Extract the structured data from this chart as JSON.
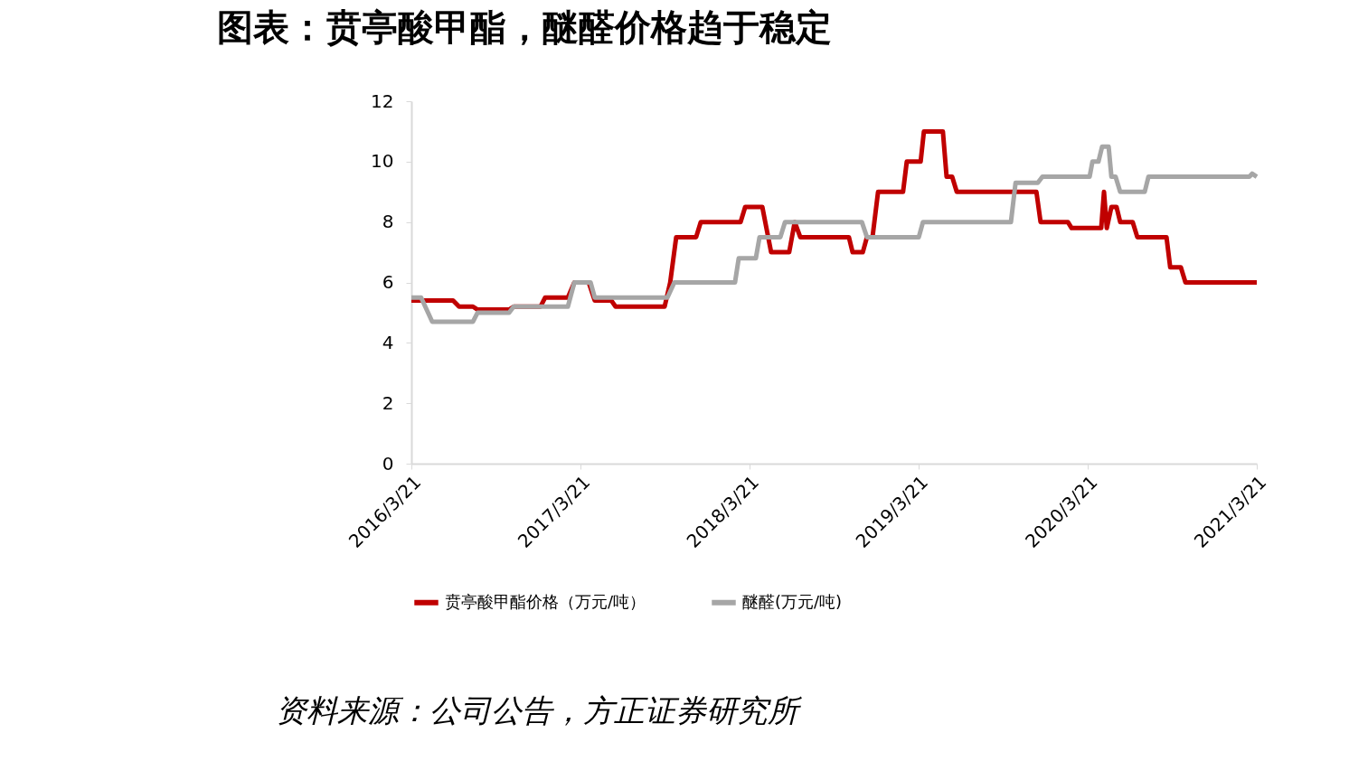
{
  "chart_data": {
    "type": "line",
    "title": "图表：贲亭酸甲酯，醚醛价格趋于稳定",
    "annotations": [
      "资料来源：公司公告，方正证券研究所"
    ],
    "series": [
      {
        "name": "贲亭酸甲酯价格（万元/吨）",
        "color": "#c00000",
        "x": [
          "2016-03-21",
          "2016-06-19",
          "2016-07-02",
          "2016-08-01",
          "2016-08-11",
          "2016-10-18",
          "2016-10-28",
          "2016-12-25",
          "2017-01-04",
          "2017-02-22",
          "2017-03-08",
          "2017-04-08",
          "2017-04-21",
          "2017-05-27",
          "2017-06-05",
          "2017-09-19",
          "2017-10-01",
          "2017-10-14",
          "2017-11-26",
          "2017-12-06",
          "2018-03-02",
          "2018-03-12",
          "2018-04-18",
          "2018-05-07",
          "2018-06-15",
          "2018-06-27",
          "2018-07-09",
          "2018-10-22",
          "2018-10-30",
          "2018-11-21",
          "2018-11-30",
          "2018-12-12",
          "2018-12-24",
          "2019-02-16",
          "2019-02-24",
          "2019-03-26",
          "2019-04-02",
          "2019-05-13",
          "2019-05-21",
          "2019-06-02",
          "2019-06-12",
          "2019-12-01",
          "2019-12-10",
          "2020-02-07",
          "2020-02-15",
          "2020-04-19",
          "2020-04-25",
          "2020-05-01",
          "2020-05-11",
          "2020-05-22",
          "2020-05-30",
          "2020-06-26",
          "2020-07-06",
          "2020-09-07",
          "2020-09-15",
          "2020-10-08",
          "2020-10-18",
          "2021-03-21"
        ],
        "values": [
          5.4,
          5.4,
          5.2,
          5.2,
          5.1,
          5.1,
          5.2,
          5.2,
          5.5,
          5.5,
          6.0,
          6.0,
          5.4,
          5.4,
          5.2,
          5.2,
          6.0,
          7.5,
          7.5,
          8.0,
          8.0,
          8.5,
          8.5,
          7.0,
          7.0,
          8.0,
          7.5,
          7.5,
          7.0,
          7.0,
          7.5,
          7.5,
          9.0,
          9.0,
          10.0,
          10.0,
          11.0,
          11.0,
          9.5,
          9.5,
          9.0,
          9.0,
          8.0,
          8.0,
          7.8,
          7.8,
          9.0,
          7.8,
          8.5,
          8.5,
          8.0,
          8.0,
          7.5,
          7.5,
          6.5,
          6.5,
          6.0,
          6.0
        ]
      },
      {
        "name": "醚醛(万元/吨)",
        "color": "#a6a6a6",
        "x": [
          "2016-03-21",
          "2016-04-11",
          "2016-05-05",
          "2016-08-01",
          "2016-08-11",
          "2016-10-18",
          "2016-10-28",
          "2017-02-22",
          "2017-03-08",
          "2017-04-12",
          "2017-04-21",
          "2017-09-25",
          "2017-10-10",
          "2018-02-18",
          "2018-02-26",
          "2018-04-04",
          "2018-04-12",
          "2018-05-27",
          "2018-06-06",
          "2018-11-19",
          "2018-11-30",
          "2019-03-22",
          "2019-03-31",
          "2019-10-07",
          "2019-10-17",
          "2019-12-04",
          "2019-12-14",
          "2020-03-25",
          "2020-03-31",
          "2020-04-13",
          "2020-04-21",
          "2020-05-05",
          "2020-05-11",
          "2020-05-20",
          "2020-05-30",
          "2020-07-22",
          "2020-07-30",
          "2021-03-05",
          "2021-03-11",
          "2021-03-21"
        ],
        "values": [
          5.5,
          5.5,
          4.7,
          4.7,
          5.0,
          5.0,
          5.2,
          5.2,
          6.0,
          6.0,
          5.5,
          5.5,
          6.0,
          6.0,
          6.8,
          6.8,
          7.5,
          7.5,
          8.0,
          8.0,
          7.5,
          7.5,
          8.0,
          8.0,
          9.3,
          9.3,
          9.5,
          9.5,
          10.0,
          10.0,
          10.5,
          10.5,
          9.5,
          9.5,
          9.0,
          9.0,
          9.5,
          9.5,
          9.6,
          9.5
        ]
      }
    ],
    "xlim": [
      "2016-03-21",
      "2021-03-21"
    ],
    "xticks": [
      {
        "value": "2016-03-21",
        "label": "2016/3/21"
      },
      {
        "value": "2017-03-21",
        "label": "2017/3/21"
      },
      {
        "value": "2018-03-21",
        "label": "2018/3/21"
      },
      {
        "value": "2019-03-21",
        "label": "2019/3/21"
      },
      {
        "value": "2020-03-21",
        "label": "2020/3/21"
      },
      {
        "value": "2021-03-21",
        "label": "2021/3/21"
      }
    ],
    "ylim": [
      0,
      12
    ],
    "yticks": [
      0,
      2,
      4,
      6,
      8,
      10,
      12
    ],
    "grid": false,
    "legend": "bottom",
    "marker": "none",
    "line_style": "solid"
  }
}
